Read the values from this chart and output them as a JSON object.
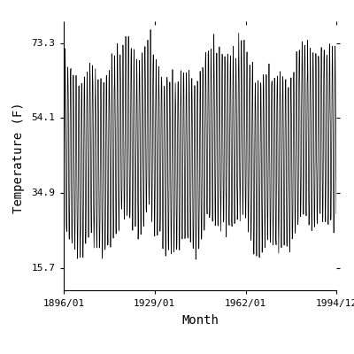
{
  "title": "",
  "xlabel": "Month",
  "ylabel": "Temperature (F)",
  "x_start_year": 1896,
  "x_start_month": 1,
  "x_end_year": 1994,
  "x_end_month": 12,
  "yticks": [
    15.7,
    34.9,
    54.1,
    73.3
  ],
  "xtick_labels": [
    "1896/01",
    "1929/01",
    "1962/01",
    "1994/12"
  ],
  "xtick_years": [
    1896,
    1929,
    1962,
    1994
  ],
  "xtick_months": [
    1,
    1,
    1,
    12
  ],
  "ylim": [
    10.0,
    78.0
  ],
  "line_color": "#000000",
  "line_width": 0.5,
  "bg_color": "#ffffff",
  "seasonal_amplitude": 22.0,
  "annual_mean": 46.0,
  "interannual_std": 4.0,
  "font_family": "monospace",
  "font_size_tick": 8,
  "font_size_label": 10
}
